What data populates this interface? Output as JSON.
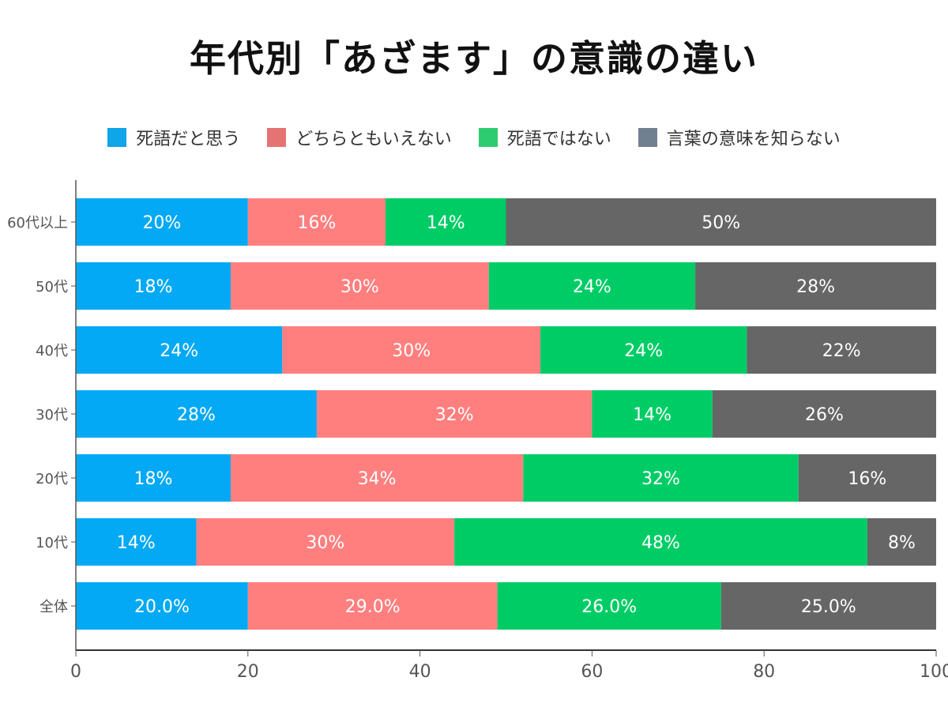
{
  "chart_data": {
    "type": "bar",
    "orientation": "horizontal",
    "stacked": true,
    "title": "年代別「あざます」の意識の違い",
    "xlabel": "",
    "ylabel": "",
    "xlim": [
      0,
      100
    ],
    "xticks": [
      0,
      20,
      40,
      60,
      80,
      100
    ],
    "grid": false,
    "legend_position": "top",
    "categories": [
      "60代以上",
      "50代",
      "40代",
      "30代",
      "20代",
      "10代",
      "全体"
    ],
    "series": [
      {
        "name": "死語だと思う",
        "color": "#03a9f4",
        "legend_color": "#0ea5e9",
        "values": [
          20,
          18,
          24,
          28,
          18,
          14,
          20.0
        ],
        "labels": [
          "20%",
          "18%",
          "24%",
          "28%",
          "18%",
          "14%",
          "20.0%"
        ]
      },
      {
        "name": "どちらともいえない",
        "color": "#ff7f7f",
        "legend_color": "#e57373",
        "values": [
          16,
          30,
          30,
          32,
          34,
          30,
          29.0
        ],
        "labels": [
          "16%",
          "30%",
          "30%",
          "32%",
          "34%",
          "30%",
          "29.0%"
        ]
      },
      {
        "name": "死語ではない",
        "color": "#00cc66",
        "legend_color": "#2ecc71",
        "values": [
          14,
          24,
          24,
          14,
          32,
          48,
          26.0
        ],
        "labels": [
          "14%",
          "24%",
          "24%",
          "14%",
          "32%",
          "48%",
          "26.0%"
        ]
      },
      {
        "name": "言葉の意味を知らない",
        "color": "#666666",
        "legend_color": "#708090",
        "values": [
          50,
          28,
          22,
          26,
          16,
          8,
          25.0
        ],
        "labels": [
          "50%",
          "28%",
          "22%",
          "26%",
          "16%",
          "8%",
          "25.0%"
        ]
      }
    ]
  }
}
